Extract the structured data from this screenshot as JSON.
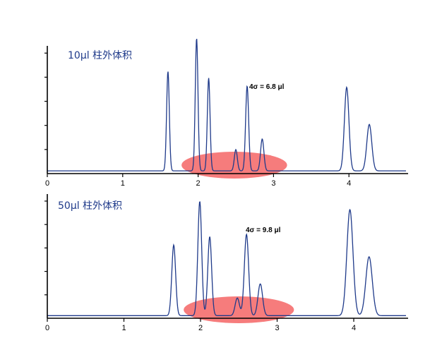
{
  "chart_data": [
    {
      "type": "line",
      "title": "10μl 柱外体积",
      "annotation": "4σ = 6.8 μl",
      "xlim": [
        0,
        4.8
      ],
      "ylim": [
        0,
        1.0
      ],
      "x_ticks": [
        "0",
        "1",
        "2",
        "3",
        "4"
      ],
      "baseline": 0.01,
      "peaks": [
        {
          "x": 1.6,
          "height": 0.75,
          "width": 0.018
        },
        {
          "x": 1.98,
          "height": 1.0,
          "width": 0.018
        },
        {
          "x": 2.14,
          "height": 0.7,
          "width": 0.018
        },
        {
          "x": 2.5,
          "height": 0.16,
          "width": 0.02
        },
        {
          "x": 2.65,
          "height": 0.64,
          "width": 0.02
        },
        {
          "x": 2.85,
          "height": 0.24,
          "width": 0.022
        },
        {
          "x": 3.97,
          "height": 0.63,
          "width": 0.03
        },
        {
          "x": 4.27,
          "height": 0.35,
          "width": 0.033
        }
      ],
      "highlight": {
        "x_center": 2.48,
        "x_halfwidth": 0.7,
        "color": "#f45b5b"
      }
    },
    {
      "type": "line",
      "title": "50μl 柱外体积",
      "annotation": "4σ = 9.8 μl",
      "xlim": [
        0,
        4.8
      ],
      "ylim": [
        0,
        1.0
      ],
      "x_ticks": [
        "0",
        "1",
        "2",
        "3",
        "4"
      ],
      "baseline": 0.01,
      "peaks": [
        {
          "x": 1.65,
          "height": 0.6,
          "width": 0.025
        },
        {
          "x": 1.99,
          "height": 0.97,
          "width": 0.025
        },
        {
          "x": 2.12,
          "height": 0.67,
          "width": 0.025
        },
        {
          "x": 2.48,
          "height": 0.15,
          "width": 0.028
        },
        {
          "x": 2.6,
          "height": 0.69,
          "width": 0.028
        },
        {
          "x": 2.78,
          "height": 0.27,
          "width": 0.03
        },
        {
          "x": 3.95,
          "height": 0.9,
          "width": 0.04
        },
        {
          "x": 4.2,
          "height": 0.5,
          "width": 0.042
        }
      ],
      "highlight": {
        "x_center": 2.5,
        "x_halfwidth": 0.72,
        "color": "#f45b5b"
      }
    }
  ]
}
